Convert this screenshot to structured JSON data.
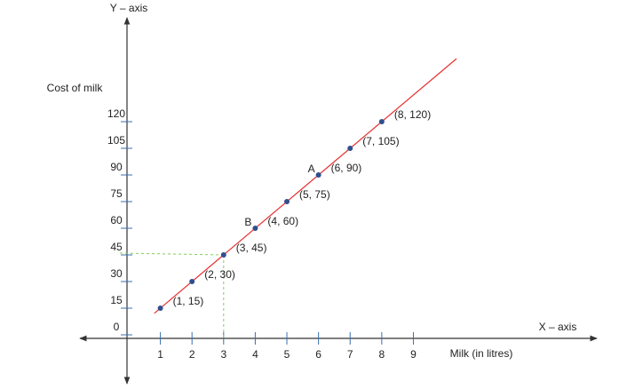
{
  "chart_data": {
    "type": "scatter",
    "y_axis_title": "Y – axis",
    "x_axis_title": "X – axis",
    "y_label": "Cost of milk",
    "x_label": "Milk (in litres)",
    "x": [
      1,
      2,
      3,
      4,
      5,
      6,
      7,
      8
    ],
    "values": [
      15,
      30,
      45,
      60,
      75,
      90,
      105,
      120
    ],
    "point_labels": [
      "(1, 15)",
      "(2, 30)",
      "(3, 45)",
      "(4, 60)",
      "(5, 75)",
      "(6, 90)",
      "(7, 105)",
      "(8, 120)"
    ],
    "annotations": [
      {
        "text": "A",
        "point": 5
      },
      {
        "text": "B",
        "point": 3
      }
    ],
    "guide_point": 2,
    "point_color": "#2f4f8f",
    "line_color": "#e53030",
    "guide_color": "#7fcf5f",
    "xlim": [
      -1.6,
      14.8
    ],
    "ylim": [
      -26.5,
      178.5
    ],
    "xticks": [
      1,
      2,
      3,
      4,
      5,
      6,
      7,
      8,
      9
    ],
    "yticks": [
      0,
      15,
      30,
      45,
      60,
      75,
      90,
      105,
      120
    ]
  }
}
